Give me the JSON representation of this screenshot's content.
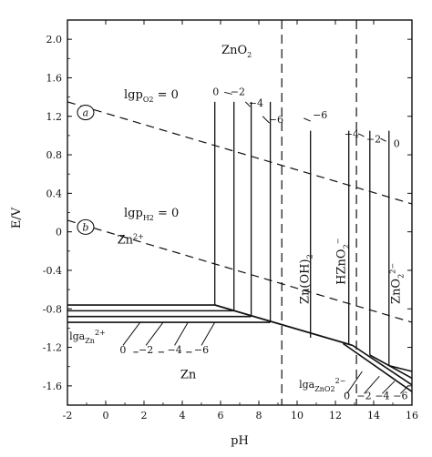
{
  "chart_data": {
    "type": "line",
    "title": "",
    "xlabel": "pH",
    "ylabel": "E/V",
    "xlim": [
      -2,
      16
    ],
    "ylim": [
      -1.8,
      2.2
    ],
    "xticks": [
      "-2",
      "0",
      "2",
      "4",
      "6",
      "8",
      "10",
      "12",
      "14",
      "16"
    ],
    "yticks": [
      "2.0",
      "1.6",
      "1.2",
      "0.8",
      "0.4",
      "0",
      "-0.4",
      "-0.8",
      "-1.2",
      "-1.6"
    ],
    "grid": false,
    "water_lines": [
      {
        "name": "a",
        "label": "lgp_O2=0",
        "x": [
          -2,
          16
        ],
        "y": [
          1.35,
          0.29
        ]
      },
      {
        "name": "b",
        "label": "lgp_H2=0",
        "x": [
          -2,
          16
        ],
        "y": [
          0.12,
          -0.94
        ]
      }
    ],
    "region_labels": [
      "ZnO2",
      "Zn2+",
      "Zn",
      "Zn(OH)2",
      "HZnO2-",
      "ZnO2 2-"
    ],
    "activity_labels": {
      "zn2plus": "lga_Zn2+",
      "zno2": "lga_ZnO2 2-",
      "values": [
        "0",
        "-2",
        "-4",
        "-6"
      ]
    },
    "boundaries": {
      "zn2_hydroxide_pH": 9.2,
      "hydroxide_hzno2_pH": 13.1
    },
    "zn2_hydroxide_lines": [
      {
        "activity": "0",
        "pH": 5.7,
        "E_bottom": -0.76
      },
      {
        "activity": "-2",
        "pH": 6.7,
        "E_bottom": -0.82
      },
      {
        "activity": "-4",
        "pH": 7.6,
        "E_bottom": -0.88
      },
      {
        "activity": "-6",
        "pH": 8.6,
        "E_bottom": -0.94
      }
    ],
    "zn_zn2_lines": [
      {
        "activity": "0",
        "E": -0.76
      },
      {
        "activity": "-2",
        "E": -0.82
      },
      {
        "activity": "-4",
        "E": -0.88
      },
      {
        "activity": "-6",
        "E": -0.94
      }
    ],
    "zn_hydroxide_line": {
      "x": [
        5.7,
        12.9
      ],
      "y": [
        -0.76,
        -1.18
      ]
    },
    "hydroxide_zno2_lines": [
      {
        "activity": "-6",
        "pH": 10.7,
        "E_bottom": -1.1
      },
      {
        "activity": "-4",
        "pH": 12.7,
        "E_bottom": -1.17
      },
      {
        "activity": "-2",
        "pH": 13.8,
        "E_bottom": -1.28
      },
      {
        "activity": "0",
        "pH": 14.8,
        "E_bottom": -1.39
      }
    ],
    "zn_zno2_lines": [
      {
        "activity": "0",
        "x": [
          14.8,
          16.0
        ],
        "y": [
          -1.39,
          -1.45
        ]
      },
      {
        "activity": "-2",
        "x": [
          13.8,
          16.0
        ],
        "y": [
          -1.28,
          -1.52
        ]
      },
      {
        "activity": "-4",
        "x": [
          12.9,
          16.0
        ],
        "y": [
          -1.18,
          -1.59
        ]
      },
      {
        "activity": "-6",
        "x": [
          12.4,
          16.0
        ],
        "y": [
          -1.16,
          -1.66
        ]
      }
    ]
  }
}
